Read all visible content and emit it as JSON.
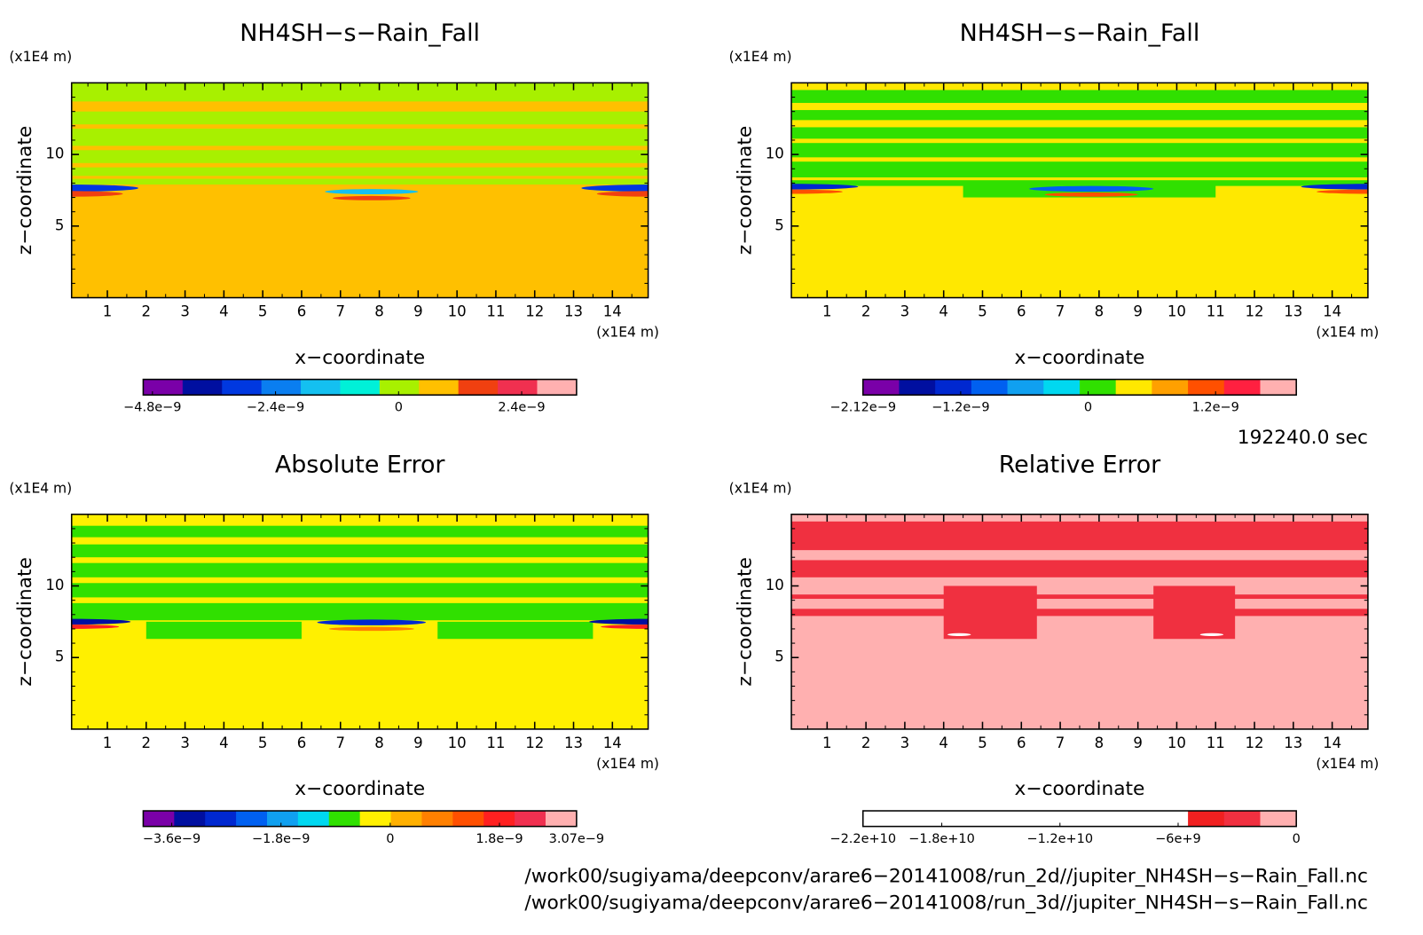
{
  "chart_data": [
    {
      "type": "contour",
      "title": "NH4SH−s−Rain_Fall",
      "x_label": "x−coordinate",
      "y_label": "z−coordinate",
      "x_unit": "(x1E4 m)",
      "y_unit": "(x1E4 m)",
      "xlim": [
        0.08,
        14.92
      ],
      "ylim": [
        0,
        15
      ],
      "xticks": [
        1,
        2,
        3,
        4,
        5,
        6,
        7,
        8,
        9,
        10,
        11,
        12,
        13,
        14
      ],
      "yticks": [
        5,
        10
      ],
      "colors": [
        "#7a00a8",
        "#000fa0",
        "#0038e0",
        "#0a7ef0",
        "#14c0f0",
        "#00f0d8",
        "#a8f000",
        "#ffc000",
        "#f04010",
        "#f03050",
        "#ffb0b0"
      ],
      "clim": [
        -4.98e-09,
        3.47e-09
      ],
      "colorbar_ticks": [
        {
          "value": -4.8e-09,
          "label": "−4.8e−9"
        },
        {
          "value": -2.4e-09,
          "label": "−2.4e−9"
        },
        0,
        {
          "value": 2.4e-09,
          "label": "2.4e−9"
        }
      ]
    },
    {
      "type": "contour",
      "title": "NH4SH−s−Rain_Fall",
      "x_label": "x−coordinate",
      "y_label": "z−coordinate",
      "x_unit": "(x1E4 m)",
      "y_unit": "(x1E4 m)",
      "xlim": [
        0.08,
        14.92
      ],
      "ylim": [
        0,
        15
      ],
      "xticks": [
        1,
        2,
        3,
        4,
        5,
        6,
        7,
        8,
        9,
        10,
        11,
        12,
        13,
        14
      ],
      "yticks": [
        5,
        10
      ],
      "colors": [
        "#7a00a8",
        "#000fa0",
        "#0028d0",
        "#0060f0",
        "#10a0f0",
        "#00d8f0",
        "#30e000",
        "#ffe800",
        "#ffa000",
        "#ff5000",
        "#ff2040",
        "#ffb0b0"
      ],
      "clim": [
        -2.12e-09,
        1.96e-09
      ],
      "colorbar_ticks": [
        {
          "value": -2.12e-09,
          "label": "−2.12e−9"
        },
        {
          "value": -1.2e-09,
          "label": "−1.2e−9"
        },
        0,
        {
          "value": 1.2e-09,
          "label": "1.2e−9"
        }
      ]
    },
    {
      "type": "contour",
      "title": "Absolute Error",
      "x_label": "x−coordinate",
      "y_label": "z−coordinate",
      "x_unit": "(x1E4 m)",
      "y_unit": "(x1E4 m)",
      "xlim": [
        0.08,
        14.92
      ],
      "ylim": [
        0,
        15
      ],
      "xticks": [
        1,
        2,
        3,
        4,
        5,
        6,
        7,
        8,
        9,
        10,
        11,
        12,
        13,
        14
      ],
      "yticks": [
        5,
        10
      ],
      "colors": [
        "#7a00a8",
        "#000fa0",
        "#0028d0",
        "#0060f0",
        "#10a0f0",
        "#00d8f0",
        "#30e000",
        "#fff000",
        "#ffb000",
        "#ff8000",
        "#ff5000",
        "#ff2020",
        "#f03050",
        "#ffb0b0"
      ],
      "clim": [
        -4.07e-09,
        3.07e-09
      ],
      "colorbar_ticks": [
        {
          "value": -3.6e-09,
          "label": "−3.6e−9"
        },
        {
          "value": -1.8e-09,
          "label": "−1.8e−9"
        },
        0,
        {
          "value": 1.8e-09,
          "label": "1.8e−9"
        },
        {
          "value": 3.07e-09,
          "label": "3.07e−9"
        }
      ]
    },
    {
      "type": "contour",
      "title": "Relative Error",
      "x_label": "x−coordinate",
      "y_label": "z−coordinate",
      "x_unit": "(x1E4 m)",
      "y_unit": "(x1E4 m)",
      "xlim": [
        0.08,
        14.92
      ],
      "ylim": [
        0,
        15
      ],
      "xticks": [
        1,
        2,
        3,
        4,
        5,
        6,
        7,
        8,
        9,
        10,
        11,
        12,
        13,
        14
      ],
      "yticks": [
        5,
        10
      ],
      "colors": [
        "#ffffff",
        "#ffffff",
        "#ffffff",
        "#ffffff",
        "#ffffff",
        "#ffffff",
        "#ffffff",
        "#ffffff",
        "#ffffff",
        "#f02020",
        "#f03040",
        "#ffb0b0"
      ],
      "clim": [
        -22000000000.0,
        0
      ],
      "colorbar_ticks": [
        {
          "value": -22000000000.0,
          "label": "−2.2e+10"
        },
        {
          "value": -18000000000.0,
          "label": "−1.8e+10"
        },
        {
          "value": -12000000000.0,
          "label": "−1.2e+10"
        },
        {
          "value": -6000000000.0,
          "label": "−6e+9"
        },
        0
      ]
    }
  ],
  "time_label": "192240.0 sec",
  "footer": [
    "/work00/sugiyama/deepconv/arare6−20141008/run_2d//jupiter_NH4SH−s−Rain_Fall.nc",
    "/work00/sugiyama/deepconv/arare6−20141008/run_3d//jupiter_NH4SH−s−Rain_Fall.nc"
  ]
}
